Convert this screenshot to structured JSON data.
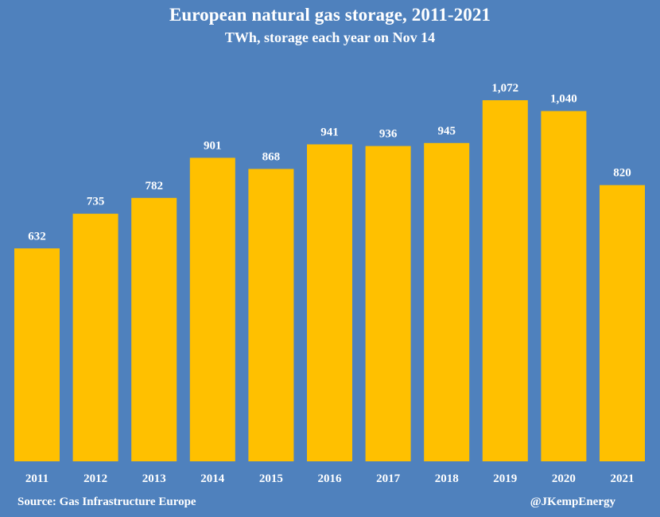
{
  "chart_data": {
    "type": "bar",
    "title": "European natural gas storage, 2011-2021",
    "subtitle": "TWh, storage each year on Nov 14",
    "categories": [
      "2011",
      "2012",
      "2013",
      "2014",
      "2015",
      "2016",
      "2017",
      "2018",
      "2019",
      "2020",
      "2021"
    ],
    "values": [
      632,
      735,
      782,
      901,
      868,
      941,
      936,
      945,
      1072,
      1040,
      820
    ],
    "data_labels": [
      "632",
      "735",
      "782",
      "901",
      "868",
      "941",
      "936",
      "945",
      "1,072",
      "1,040",
      "820"
    ],
    "ylim": [
      0,
      1072
    ],
    "grid": false,
    "legend": "none",
    "xlabel": "",
    "ylabel": ""
  },
  "footer": {
    "source": "Source: Gas Infrastructure Europe",
    "credit": "@JKempEnergy"
  },
  "colors": {
    "background": "#4f81bd",
    "bar": "#ffc000",
    "text": "#ffffff"
  }
}
